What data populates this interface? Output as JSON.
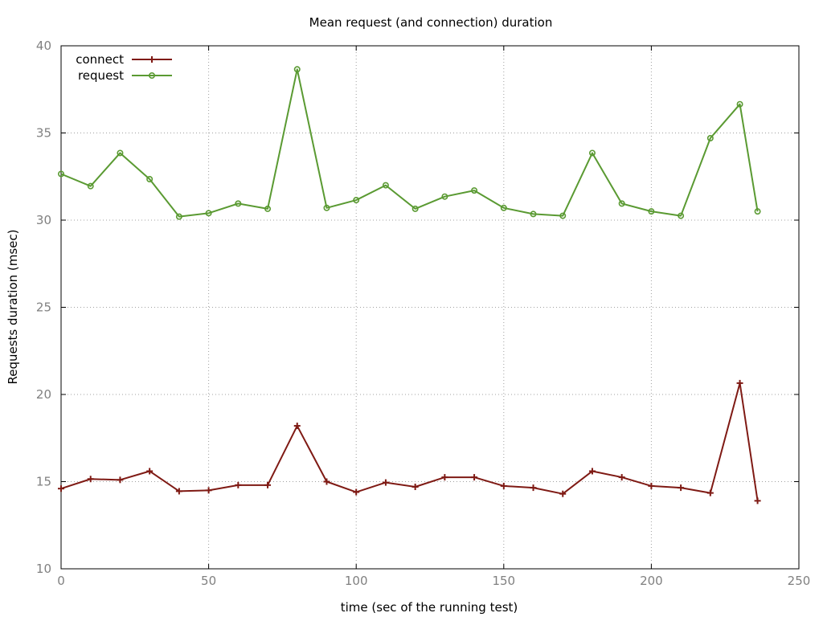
{
  "chart_data": {
    "type": "line",
    "title": "Mean request (and connection) duration",
    "xlabel": "time (sec of the running test)",
    "ylabel": "Requests duration (msec)",
    "xlim": [
      0,
      250
    ],
    "ylim": [
      10,
      40
    ],
    "xticks": [
      0,
      50,
      100,
      150,
      200,
      250
    ],
    "yticks": [
      10,
      15,
      20,
      25,
      30,
      35,
      40
    ],
    "grid": true,
    "legend_position": "top-left",
    "x": [
      0,
      10,
      20,
      30,
      40,
      50,
      60,
      70,
      80,
      90,
      100,
      110,
      120,
      130,
      140,
      150,
      160,
      170,
      180,
      190,
      200,
      210,
      220,
      230,
      236
    ],
    "series": [
      {
        "name": "connect",
        "color": "#7f1a14",
        "marker": "plus",
        "values": [
          14.6,
          15.15,
          15.1,
          15.6,
          14.45,
          14.5,
          14.8,
          14.8,
          18.2,
          15.0,
          14.4,
          14.95,
          14.7,
          15.25,
          15.25,
          14.75,
          14.65,
          14.3,
          15.6,
          15.25,
          14.75,
          14.65,
          14.35,
          20.65,
          13.9
        ]
      },
      {
        "name": "request",
        "color": "#5a9a32",
        "marker": "circle",
        "values": [
          32.65,
          31.95,
          33.85,
          32.35,
          30.2,
          30.4,
          30.95,
          30.65,
          38.65,
          30.7,
          31.15,
          32.0,
          30.65,
          31.35,
          31.7,
          30.7,
          30.35,
          30.25,
          33.85,
          30.95,
          30.5,
          30.25,
          34.7,
          36.65,
          30.5
        ]
      }
    ]
  }
}
